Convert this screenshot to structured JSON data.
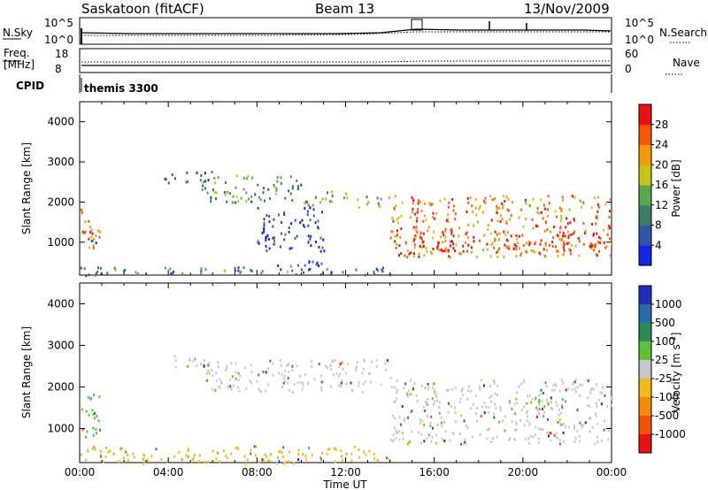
{
  "header": {
    "station": "Saskatoon (fitACF)",
    "beam": "Beam 13",
    "date": "13/Nov/2009"
  },
  "noise_panel": {
    "left_label": "N.Sky",
    "right_label": "N.Search",
    "left_ticks": [
      "10^5",
      "10^0"
    ],
    "right_ticks": [
      "10^5",
      "10^0"
    ]
  },
  "freq_panel": {
    "left_label_1": "Freq.",
    "left_label_2": "[MHz]",
    "right_label": "Nave",
    "left_ticks": [
      "18",
      "8"
    ],
    "right_ticks": [
      "60",
      "0"
    ]
  },
  "cpid_panel": {
    "label": "CPID",
    "program": "themis 3300"
  },
  "chart_data": [
    {
      "type": "heatmap",
      "quantity": "Power",
      "ylabel": "Slant Range [km]",
      "colorbar_label": "Power [dB]",
      "ylim": [
        180,
        4500
      ],
      "y_ticks": [
        1000,
        2000,
        3000,
        4000
      ],
      "colorbar_ticks": [
        4,
        8,
        12,
        16,
        20,
        24,
        28
      ],
      "colorbar_range": [
        0,
        32
      ],
      "colors": [
        "#1424e0",
        "#2e56a8",
        "#3e7c68",
        "#56a84a",
        "#c6c21e",
        "#f29a0c",
        "#f4580a",
        "#e81010"
      ],
      "xlim_hours": [
        0,
        24
      ],
      "regions": [
        {
          "t": [
            0.0,
            0.9
          ],
          "r": [
            800,
            1900
          ],
          "level": 0.8
        },
        {
          "t": [
            0.3,
            1.2
          ],
          "r": [
            950,
            1100
          ],
          "level": 0.2
        },
        {
          "t": [
            3.8,
            6.0
          ],
          "r": [
            2500,
            2800
          ],
          "level": 0.15
        },
        {
          "t": [
            5.5,
            10.0
          ],
          "r": [
            2000,
            2700
          ],
          "level": 0.4
        },
        {
          "t": [
            10.0,
            12.0
          ],
          "r": [
            1900,
            2300
          ],
          "level": 0.55
        },
        {
          "t": [
            12.0,
            14.0
          ],
          "r": [
            1900,
            2200
          ],
          "level": 0.55
        },
        {
          "t": [
            8.0,
            11.0
          ],
          "r": [
            800,
            1900
          ],
          "level": 0.12
        },
        {
          "t": [
            14.0,
            24.0
          ],
          "r": [
            650,
            2200
          ],
          "level": 0.75
        },
        {
          "t": [
            15.0,
            23.5
          ],
          "r": [
            800,
            1300
          ],
          "level": 0.9
        },
        {
          "t": [
            8.5,
            11.5
          ],
          "r": [
            350,
            550
          ],
          "level": 0.2
        },
        {
          "t": [
            0.0,
            14.0
          ],
          "r": [
            180,
            400
          ],
          "level": 0.3
        }
      ]
    },
    {
      "type": "heatmap",
      "quantity": "Velocity",
      "ylabel": "Slant Range [km]",
      "xlabel": "Time UT",
      "colorbar_label": "Velocity [m s^-1]",
      "ylim": [
        180,
        4500
      ],
      "y_ticks": [
        1000,
        2000,
        3000,
        4000
      ],
      "x_ticks": [
        "00:00",
        "04:00",
        "08:00",
        "12:00",
        "16:00",
        "20:00",
        "00:00"
      ],
      "colorbar_ticks": [
        "1000",
        "500",
        "100",
        "25",
        "-25",
        "-100",
        "-500",
        "-1000"
      ],
      "colors": [
        "#1c2fb5",
        "#276aa8",
        "#2a8a58",
        "#5cc238",
        "#c8c8c8",
        "#f2b81e",
        "#f28a0c",
        "#f4520a",
        "#e81010"
      ],
      "xlim_hours": [
        0,
        24
      ],
      "regions": [
        {
          "t": [
            0.0,
            0.9
          ],
          "r": [
            800,
            1900
          ],
          "level": 3
        },
        {
          "t": [
            3.8,
            6.0
          ],
          "r": [
            2500,
            2800
          ],
          "level": 4
        },
        {
          "t": [
            5.5,
            14.0
          ],
          "r": [
            1900,
            2700
          ],
          "level": 4
        },
        {
          "t": [
            14.0,
            24.0
          ],
          "r": [
            650,
            2200
          ],
          "level": 4
        },
        {
          "t": [
            20.0,
            22.0
          ],
          "r": [
            1500,
            1800
          ],
          "level": 3
        },
        {
          "t": [
            0.0,
            14.0
          ],
          "r": [
            180,
            600
          ],
          "level": 5
        }
      ]
    }
  ]
}
